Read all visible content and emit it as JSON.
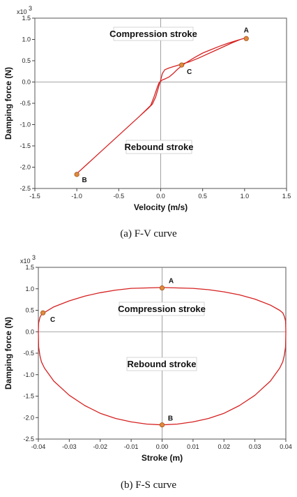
{
  "captions": [
    "(a)  F-V  curve",
    "(b)  F-S  curve"
  ],
  "chart_data": [
    {
      "type": "line",
      "xlabel": "Velocity (m/s)",
      "ylabel": "Damping force (N)",
      "y_multiplier": "x10",
      "y_multiplier_exp": "3",
      "xlim": [
        -1.5,
        1.5
      ],
      "ylim": [
        -2.5,
        1.5
      ],
      "x_ticks": [
        "-1.5",
        "-1.0",
        "-0.5",
        "0.0",
        "0.5",
        "1.0",
        "1.5"
      ],
      "y_ticks": [
        "1.5",
        "1.0",
        "0.5",
        "0.0",
        "-0.5",
        "-1.0",
        "-1.5",
        "-2.0",
        "-2.5"
      ],
      "annotations": [
        "Compression stroke",
        "Rebound stroke"
      ],
      "series": [
        {
          "color": "#d62020",
          "x": [
            -1.0,
            -0.75,
            -0.5,
            -0.25,
            -0.12,
            -0.08,
            -0.04,
            -0.02,
            0.0,
            0.02,
            0.06,
            0.1,
            0.15,
            0.2,
            0.25,
            0.3,
            0.4,
            0.5,
            0.6,
            0.7,
            0.8,
            0.9,
            1.0,
            0.95,
            0.85,
            0.75,
            0.65,
            0.55,
            0.45,
            0.35,
            0.25,
            0.15,
            0.1,
            0.05,
            0.02,
            0.0,
            -0.03,
            -0.06,
            -0.1,
            -0.15,
            -0.25,
            -0.5,
            -0.75,
            -1.0
          ],
          "y": [
            -2.15,
            -1.7,
            -1.25,
            -0.8,
            -0.55,
            -0.35,
            -0.12,
            -0.02,
            0.02,
            0.05,
            0.08,
            0.12,
            0.2,
            0.3,
            0.38,
            0.45,
            0.57,
            0.68,
            0.76,
            0.84,
            0.91,
            0.97,
            1.03,
            1.0,
            0.92,
            0.83,
            0.74,
            0.65,
            0.56,
            0.48,
            0.42,
            0.36,
            0.33,
            0.29,
            0.2,
            0.05,
            -0.15,
            -0.35,
            -0.52,
            -0.62,
            -0.8,
            -1.25,
            -1.7,
            -2.15
          ]
        }
      ],
      "points": [
        {
          "label": "A",
          "x": 1.02,
          "y": 1.02
        },
        {
          "label": "B",
          "x": -1.0,
          "y": -2.17
        },
        {
          "label": "C",
          "x": 0.25,
          "y": 0.4
        }
      ]
    },
    {
      "type": "line",
      "xlabel": "Stroke (m)",
      "ylabel": "Damping force (N)",
      "y_multiplier": "x10",
      "y_multiplier_exp": "3",
      "xlim": [
        -0.04,
        0.04
      ],
      "ylim": [
        -2.5,
        1.5
      ],
      "x_ticks": [
        "-0.04",
        "-0.03",
        "-0.02",
        "-0.01",
        "0.00",
        "0.01",
        "0.02",
        "0.03",
        "0.04"
      ],
      "y_ticks": [
        "1.5",
        "1.0",
        "0.5",
        "0.0",
        "-0.5",
        "-1.0",
        "-1.5",
        "-2.0",
        "-2.5"
      ],
      "annotations": [
        "Compression stroke",
        "Rebound stroke"
      ],
      "series": [
        {
          "color": "#d62020",
          "x": [
            -0.04,
            -0.0399,
            -0.0395,
            -0.039,
            -0.038,
            -0.035,
            -0.03,
            -0.025,
            -0.02,
            -0.015,
            -0.01,
            -0.005,
            0.0,
            0.005,
            0.01,
            0.015,
            0.02,
            0.025,
            0.03,
            0.035,
            0.038,
            0.039,
            0.0395,
            0.0399,
            0.04,
            0.0399,
            0.0395,
            0.039,
            0.038,
            0.035,
            0.03,
            0.025,
            0.02,
            0.015,
            0.01,
            0.005,
            0.0,
            -0.005,
            -0.01,
            -0.015,
            -0.02,
            -0.025,
            -0.03,
            -0.035,
            -0.038,
            -0.039,
            -0.0395,
            -0.0399,
            -0.04
          ],
          "y": [
            0.0,
            0.2,
            0.33,
            0.4,
            0.45,
            0.58,
            0.72,
            0.83,
            0.91,
            0.97,
            1.01,
            1.02,
            1.03,
            1.02,
            1.01,
            0.98,
            0.93,
            0.86,
            0.76,
            0.62,
            0.5,
            0.44,
            0.36,
            0.25,
            0.0,
            -0.35,
            -0.55,
            -0.7,
            -0.85,
            -1.15,
            -1.48,
            -1.72,
            -1.9,
            -2.02,
            -2.1,
            -2.15,
            -2.17,
            -2.15,
            -2.1,
            -2.02,
            -1.9,
            -1.72,
            -1.48,
            -1.15,
            -0.85,
            -0.7,
            -0.55,
            -0.35,
            0.0
          ]
        }
      ],
      "points": [
        {
          "label": "A",
          "x": 0.0,
          "y": 1.02
        },
        {
          "label": "B",
          "x": 0.0,
          "y": -2.17
        },
        {
          "label": "C",
          "x": -0.0385,
          "y": 0.44
        }
      ]
    }
  ]
}
